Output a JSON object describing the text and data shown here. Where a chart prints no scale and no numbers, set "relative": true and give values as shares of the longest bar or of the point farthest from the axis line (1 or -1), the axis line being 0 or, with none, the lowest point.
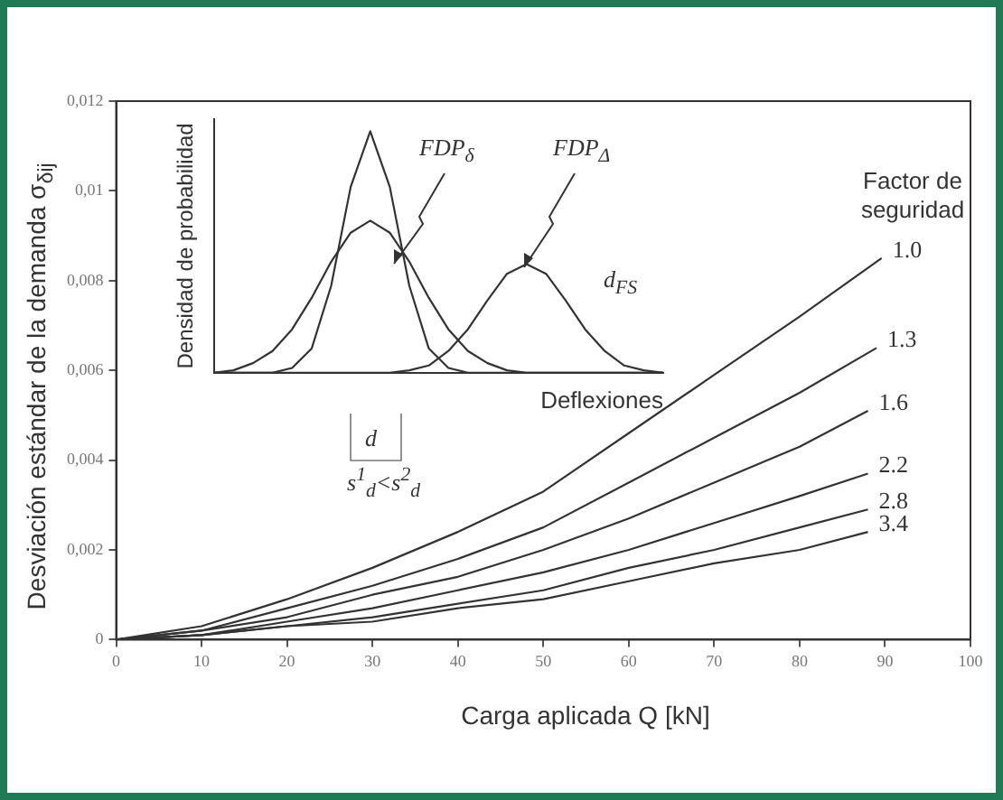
{
  "chart_data": [
    {
      "type": "line",
      "xlabel": "Carga aplicada Q [kN]",
      "ylabel": "Desviación estándar de la demanda σ$_{δij}$",
      "legend_title": "Factor de seguridad",
      "xlim": [
        0,
        100
      ],
      "ylim": [
        0,
        0.012
      ],
      "xticks": [
        0,
        10,
        20,
        30,
        40,
        50,
        60,
        70,
        80,
        90,
        100
      ],
      "yticks": [
        0,
        {
          "value": 0.002,
          "label": "0,002"
        },
        {
          "value": 0.004,
          "label": "0,004"
        },
        {
          "value": 0.006,
          "label": "0,006"
        },
        {
          "value": 0.008,
          "label": "0,008"
        },
        {
          "value": 0.01,
          "label": "0,01"
        },
        {
          "value": 0.012,
          "label": "0,012"
        }
      ],
      "grid": false,
      "series": [
        {
          "name": "1.0",
          "color": "#333333",
          "x": [
            0,
            10,
            20,
            30,
            40,
            50,
            60,
            70,
            80,
            89.6
          ],
          "values": [
            0,
            0.0003,
            0.0009,
            0.0016,
            0.0024,
            0.0033,
            0.0046,
            0.0059,
            0.0072,
            0.0085
          ]
        },
        {
          "name": "1.3",
          "color": "#333333",
          "x": [
            0,
            10,
            20,
            30,
            40,
            50,
            60,
            70,
            80,
            89
          ],
          "values": [
            0,
            0.0002,
            0.0007,
            0.0012,
            0.0018,
            0.0025,
            0.0035,
            0.0045,
            0.0055,
            0.0065
          ]
        },
        {
          "name": "1.6",
          "color": "#333333",
          "x": [
            0,
            10,
            20,
            30,
            40,
            50,
            60,
            70,
            80,
            88
          ],
          "values": [
            0,
            0.0002,
            0.0005,
            0.001,
            0.0014,
            0.002,
            0.0027,
            0.0035,
            0.0043,
            0.0051
          ]
        },
        {
          "name": "2.2",
          "color": "#333333",
          "x": [
            0,
            10,
            20,
            30,
            40,
            50,
            60,
            70,
            80,
            88
          ],
          "values": [
            0,
            0.0001,
            0.0004,
            0.0007,
            0.0011,
            0.0015,
            0.002,
            0.0026,
            0.0032,
            0.0037
          ]
        },
        {
          "name": "2.8",
          "color": "#333333",
          "x": [
            0,
            10,
            20,
            30,
            40,
            50,
            60,
            70,
            80,
            88
          ],
          "values": [
            0,
            0.0001,
            0.0003,
            0.0005,
            0.0008,
            0.0011,
            0.0016,
            0.002,
            0.0025,
            0.0029
          ]
        },
        {
          "name": "3.4",
          "color": "#333333",
          "x": [
            0,
            10,
            20,
            30,
            40,
            50,
            60,
            70,
            80,
            88
          ],
          "values": [
            0,
            0.0001,
            0.0003,
            0.0004,
            0.0007,
            0.0009,
            0.0013,
            0.0017,
            0.002,
            0.0024
          ]
        }
      ]
    },
    {
      "type": "line",
      "relative": true,
      "xlabel": "Deflexiones",
      "ylabel": "Densidad de probabilidad",
      "annotations": [
        "FDP$_{δ}$",
        "FDP$_{Δ}$",
        "d",
        "d$_{FS}$",
        "s$^{1}$$_{d}$<s$^{2}$$_{d}$"
      ],
      "categories": [
        null,
        null,
        null,
        null,
        null,
        null,
        null,
        null,
        null,
        null,
        null,
        null,
        null,
        null,
        null,
        null,
        null,
        null,
        null,
        null,
        null,
        null,
        null,
        null
      ],
      "series": [
        {
          "color": "#333333",
          "values": [
            0,
            0,
            0,
            0,
            0.02,
            0.1,
            0.36,
            0.77,
            1,
            0.77,
            0.36,
            0.1,
            0.02,
            0,
            0,
            0,
            0,
            0,
            0,
            0,
            0,
            0,
            0,
            0
          ]
        },
        {
          "color": "#333333",
          "values": [
            0,
            0.01,
            0.04,
            0.09,
            0.18,
            0.31,
            0.46,
            0.58,
            0.63,
            0.58,
            0.46,
            0.31,
            0.18,
            0.09,
            0.04,
            0.01,
            0,
            0,
            0,
            0,
            0,
            0,
            0,
            0
          ]
        },
        {
          "color": "#333333",
          "values": [
            0,
            0,
            0,
            0,
            0,
            0,
            0,
            0,
            0,
            0,
            0.01,
            0.03,
            0.09,
            0.18,
            0.3,
            0.41,
            0.45,
            0.41,
            0.3,
            0.18,
            0.09,
            0.03,
            0.01,
            0
          ]
        }
      ]
    }
  ]
}
